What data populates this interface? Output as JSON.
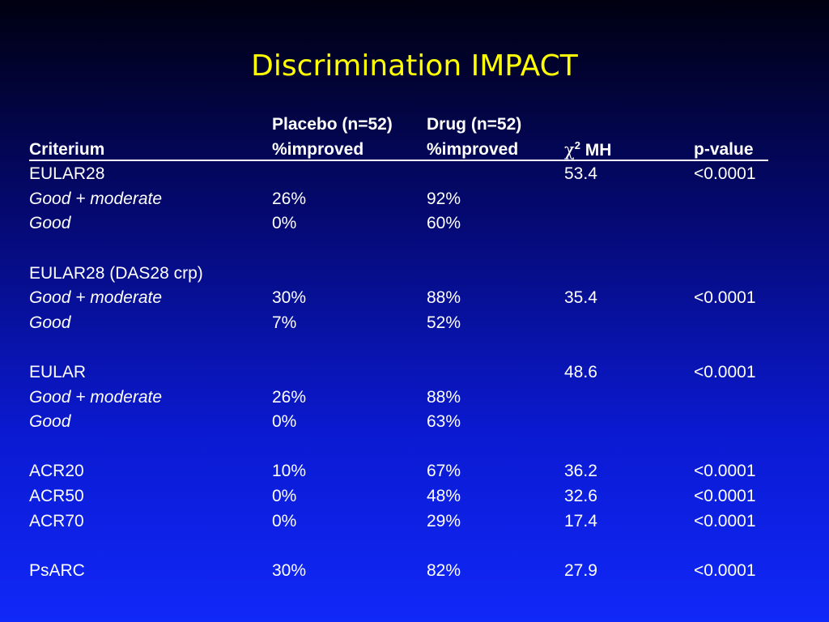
{
  "slide": {
    "title": "Discrimination IMPACT"
  },
  "table": {
    "header_top": {
      "placebo": "Placebo (n=52)",
      "drug": "Drug (n=52)"
    },
    "header": {
      "criterium": "Criterium",
      "placebo": "%improved",
      "drug": "%improved",
      "chi_symbol": "χ",
      "chi_sup": "2",
      "chi_suffix": " MH",
      "pvalue": "p-value"
    },
    "rows": [
      {
        "criterium": "EULAR28",
        "italic": false,
        "placebo": "",
        "drug": "",
        "chi": "53.4",
        "p": "<0.0001"
      },
      {
        "criterium": "Good + moderate",
        "italic": true,
        "placebo": "26%",
        "drug": "92%",
        "chi": "",
        "p": ""
      },
      {
        "criterium": "Good",
        "italic": true,
        "placebo": "0%",
        "drug": "60%",
        "chi": "",
        "p": ""
      },
      {
        "spacer": true
      },
      {
        "criterium": "EULAR28 (DAS28 crp)",
        "italic": false,
        "placebo": "",
        "drug": "",
        "chi": "",
        "p": ""
      },
      {
        "criterium": "Good + moderate",
        "italic": true,
        "placebo": "30%",
        "drug": "88%",
        "chi": "35.4",
        "p": "<0.0001"
      },
      {
        "criterium": "Good",
        "italic": true,
        "placebo": "7%",
        "drug": "52%",
        "chi": "",
        "p": ""
      },
      {
        "spacer": true
      },
      {
        "criterium": "EULAR",
        "italic": false,
        "placebo": "",
        "drug": "",
        "chi": "48.6",
        "p": "<0.0001"
      },
      {
        "criterium": "Good + moderate",
        "italic": true,
        "placebo": "26%",
        "drug": "88%",
        "chi": "",
        "p": ""
      },
      {
        "criterium": "Good",
        "italic": true,
        "placebo": "0%",
        "drug": "63%",
        "chi": "",
        "p": ""
      },
      {
        "spacer": true
      },
      {
        "criterium": "ACR20",
        "italic": false,
        "placebo": "10%",
        "drug": "67%",
        "chi": "36.2",
        "p": "<0.0001"
      },
      {
        "criterium": "ACR50",
        "italic": false,
        "placebo": "0%",
        "drug": "48%",
        "chi": "32.6",
        "p": "<0.0001"
      },
      {
        "criterium": "ACR70",
        "italic": false,
        "placebo": "0%",
        "drug": "29%",
        "chi": "17.4",
        "p": "<0.0001"
      },
      {
        "spacer": true
      },
      {
        "criterium": "PsARC",
        "italic": false,
        "placebo": "30%",
        "drug": "82%",
        "chi": "27.9",
        "p": "<0.0001"
      }
    ]
  }
}
